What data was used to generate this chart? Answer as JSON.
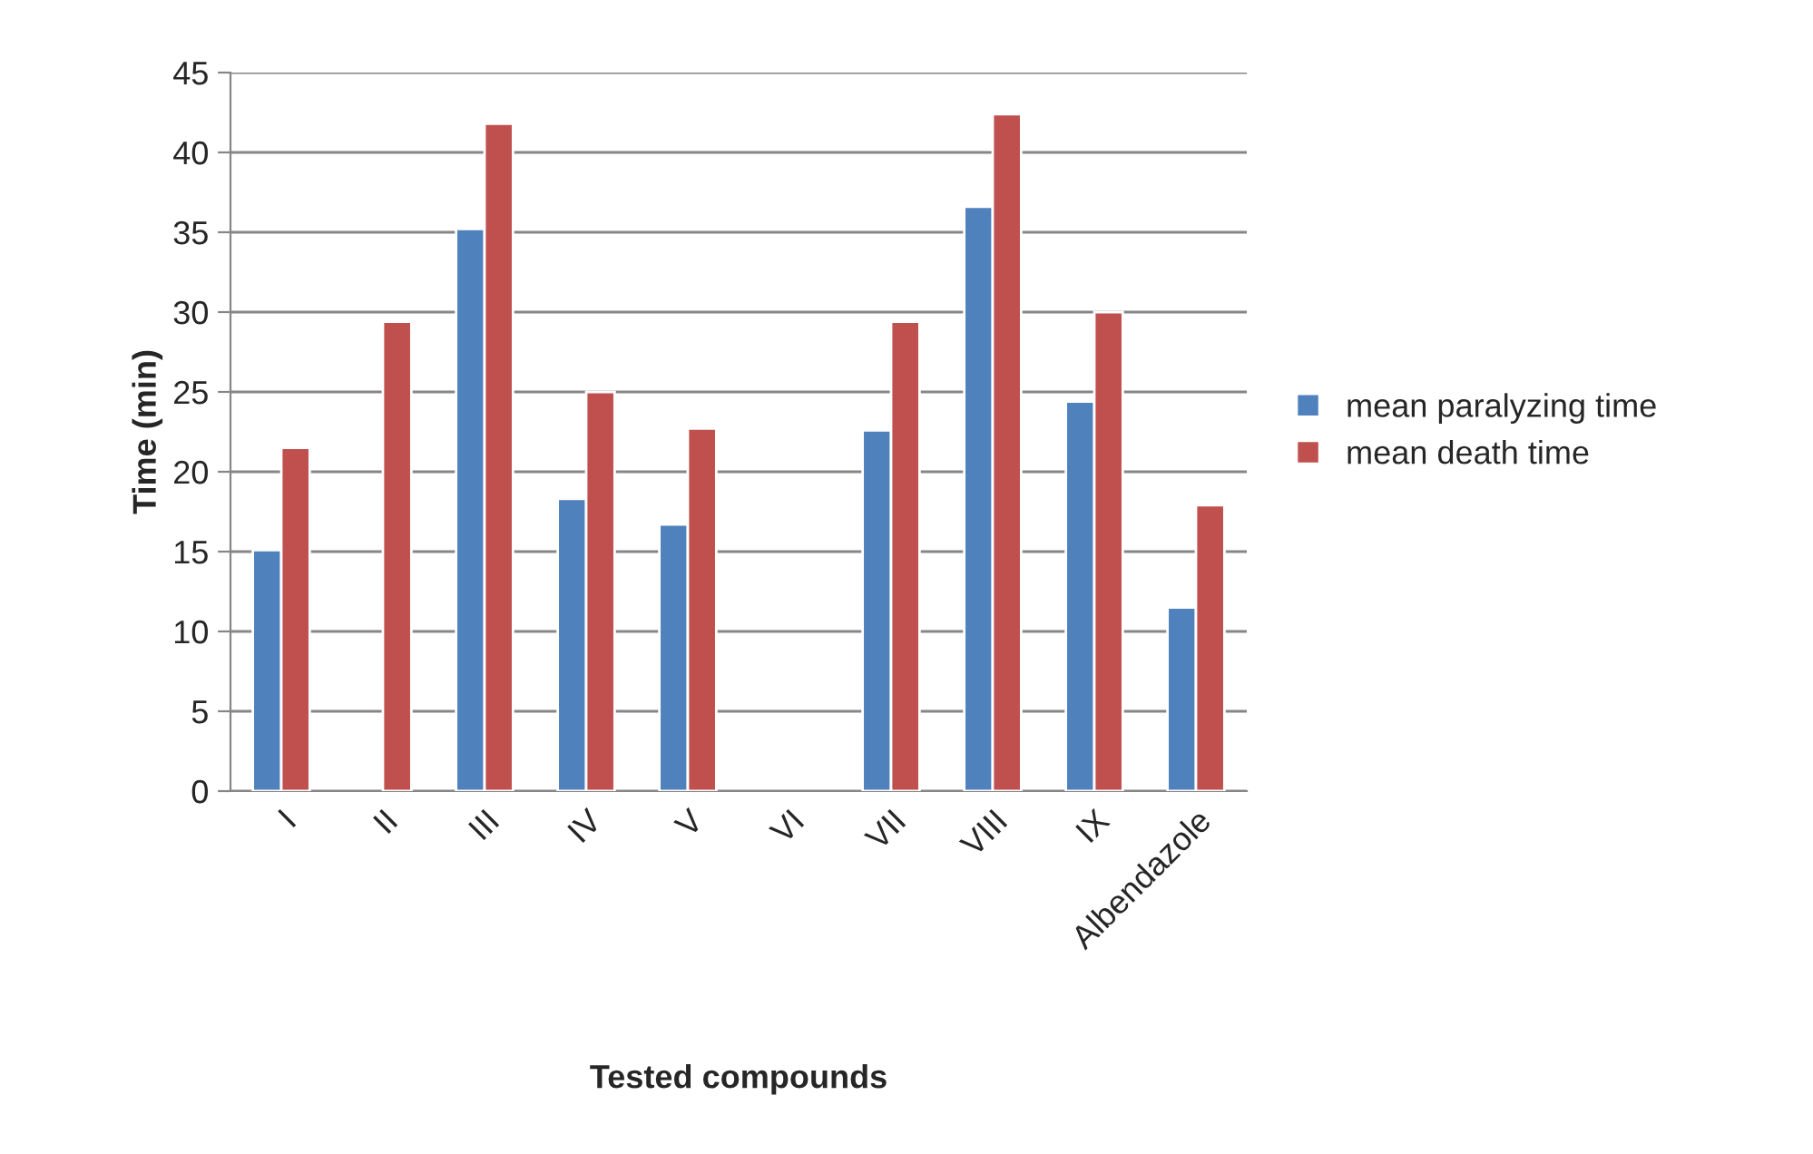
{
  "chart_data": {
    "type": "bar",
    "xlabel": "Tested compounds",
    "ylabel": "Time (min)",
    "categories": [
      "I",
      "II",
      "III",
      "IV",
      "V",
      "VI",
      "VII",
      "VIII",
      "IX",
      "Albendazole"
    ],
    "series": [
      {
        "name": "mean paralyzing time",
        "color": "#4f81bd",
        "values": [
          15.1,
          null,
          35.2,
          18.3,
          16.7,
          null,
          22.6,
          36.6,
          24.4,
          11.5
        ]
      },
      {
        "name": "mean death time",
        "color": "#c0504d",
        "values": [
          21.5,
          29.4,
          41.8,
          25.0,
          22.7,
          null,
          29.4,
          42.4,
          30.0,
          17.9
        ]
      }
    ],
    "ylim": [
      0,
      45
    ],
    "yticks": [
      0,
      5,
      10,
      15,
      20,
      25,
      30,
      35,
      40,
      45
    ],
    "grid": "y",
    "legend": "right"
  }
}
